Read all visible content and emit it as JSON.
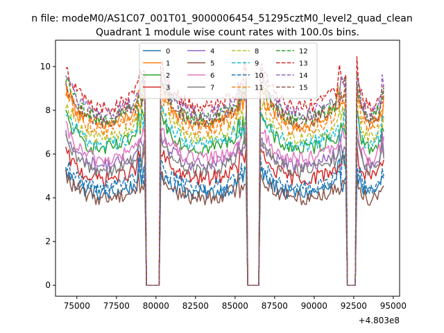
{
  "chart_data": {
    "type": "line",
    "suptitle": "n file: modeM0/AS1C07_001T01_9000006454_51295cztM0_level2_quad_clean",
    "title": "Quadrant 1 module wise count rates with 100.0s bins.",
    "xlabel": "",
    "ylabel": "",
    "x_offset_label": "+4.803e8",
    "xlim": [
      73650,
      95400
    ],
    "ylim": [
      -0.5,
      11.2
    ],
    "xticks": [
      75000,
      77500,
      80000,
      82500,
      85000,
      87500,
      90000,
      92500,
      95000
    ],
    "yticks": [
      0,
      2,
      4,
      6,
      8,
      10
    ],
    "grid": false,
    "legend": {
      "placement": "top-center",
      "ncol": 4
    },
    "x_start": 74300,
    "x_end": 94450,
    "x_step": 100,
    "gaps": [
      {
        "x0": 79300,
        "x1": 80300
      },
      {
        "x0": 85700,
        "x1": 86600
      },
      {
        "x0": 92000,
        "x1": 92700
      }
    ],
    "series": [
      {
        "name": "0",
        "color": "#1f77b4",
        "dash": "solid",
        "level": 4.3
      },
      {
        "name": "1",
        "color": "#ff7f0e",
        "dash": "solid",
        "level": 7.5
      },
      {
        "name": "2",
        "color": "#2ca02c",
        "dash": "solid",
        "level": 6.4
      },
      {
        "name": "3",
        "color": "#d62728",
        "dash": "solid",
        "level": 5.0
      },
      {
        "name": "4",
        "color": "#9467bd",
        "dash": "solid",
        "level": 5.6
      },
      {
        "name": "5",
        "color": "#8c564b",
        "dash": "solid",
        "level": 4.1
      },
      {
        "name": "6",
        "color": "#e377c2",
        "dash": "solid",
        "level": 5.9
      },
      {
        "name": "7",
        "color": "#7f7f7f",
        "dash": "solid",
        "level": 5.4
      },
      {
        "name": "8",
        "color": "#bcbd22",
        "dash": "dashed",
        "level": 6.9
      },
      {
        "name": "9",
        "color": "#17becf",
        "dash": "dashed",
        "level": 6.6
      },
      {
        "name": "10",
        "color": "#1f77b4",
        "dash": "dashed",
        "level": 4.6
      },
      {
        "name": "11",
        "color": "#ff7f0e",
        "dash": "dashed",
        "level": 7.3
      },
      {
        "name": "12",
        "color": "#2ca02c",
        "dash": "dashed",
        "level": 7.8
      },
      {
        "name": "13",
        "color": "#d62728",
        "dash": "dashed",
        "level": 8.3
      },
      {
        "name": "14",
        "color": "#9467bd",
        "dash": "dashed",
        "level": 8.0
      },
      {
        "name": "15",
        "color": "#8c564b",
        "dash": "dashed",
        "level": 7.7
      }
    ]
  }
}
